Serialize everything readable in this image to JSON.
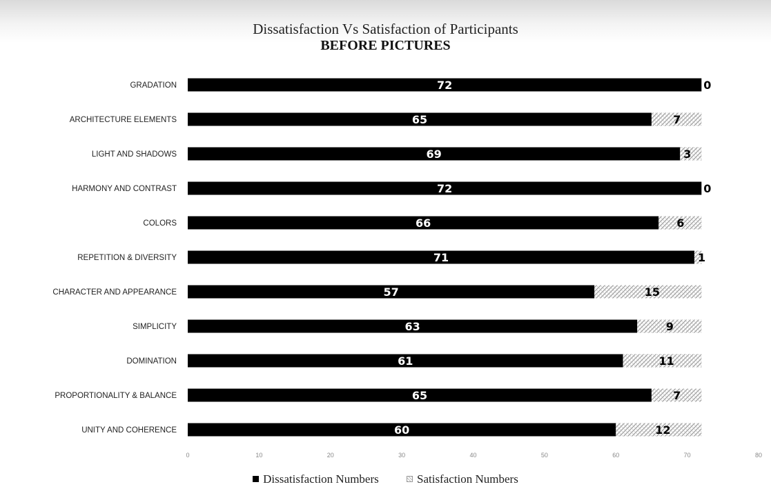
{
  "chart_data": {
    "type": "bar",
    "orientation": "horizontal",
    "stacked": true,
    "title": "Dissatisfaction Vs Satisfaction of Participants",
    "subtitle": "BEFORE PICTURES",
    "categories": [
      "GRADATION",
      "ARCHITECTURE ELEMENTS",
      "LIGHT AND SHADOWS",
      "HARMONY AND CONTRAST",
      "COLORS",
      "REPETITION & DIVERSITY",
      "CHARACTER AND APPEARANCE",
      "SIMPLICITY",
      "DOMINATION",
      "PROPORTIONALITY & BALANCE",
      "UNITY AND COHERENCE"
    ],
    "series": [
      {
        "name": "Dissatisfaction Numbers",
        "values": [
          72,
          65,
          69,
          72,
          66,
          71,
          57,
          63,
          61,
          65,
          60
        ],
        "color": "#000000",
        "pattern": "solid"
      },
      {
        "name": "Satisfaction Numbers",
        "values": [
          0,
          7,
          3,
          0,
          6,
          1,
          15,
          9,
          11,
          7,
          12
        ],
        "color": "#ffffff",
        "pattern": "hatched"
      }
    ],
    "xlim": [
      0,
      80
    ],
    "xticks": [
      "0",
      "10",
      "20",
      "30",
      "40",
      "50",
      "60",
      "70",
      "80"
    ],
    "xticks_values": [
      0,
      10,
      20,
      30,
      40,
      50,
      60,
      70,
      80
    ],
    "grid": false,
    "legend_position": "bottom"
  }
}
